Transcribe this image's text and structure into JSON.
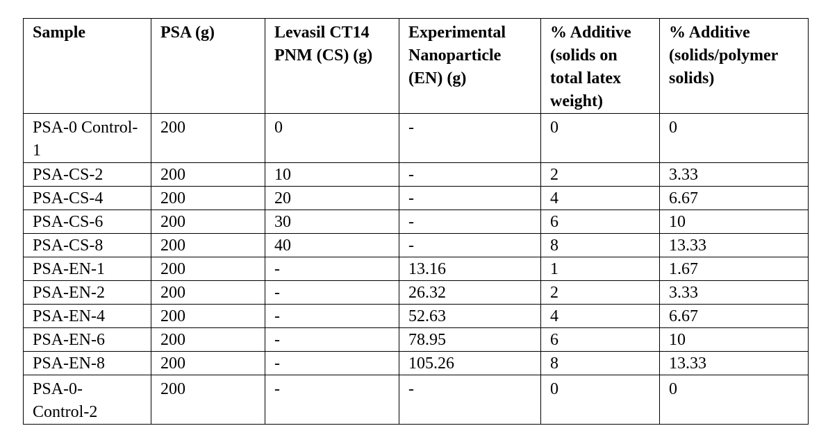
{
  "table": {
    "headers": [
      "Sample",
      "PSA (g)",
      "Levasil CT14 PNM (CS) (g)",
      "Experimental Nanoparticle (EN) (g)",
      "% Additive (solids on total latex weight)",
      "% Additive (solids/polymer solids)"
    ],
    "rows": [
      [
        "PSA-0 Control-1",
        "200",
        "0",
        "-",
        "0",
        "0"
      ],
      [
        "PSA-CS-2",
        "200",
        "10",
        "-",
        "2",
        "3.33"
      ],
      [
        "PSA-CS-4",
        "200",
        "20",
        "-",
        "4",
        "6.67"
      ],
      [
        "PSA-CS-6",
        "200",
        "30",
        "-",
        "6",
        "10"
      ],
      [
        "PSA-CS-8",
        "200",
        "40",
        "-",
        "8",
        "13.33"
      ],
      [
        "PSA-EN-1",
        "200",
        "-",
        "13.16",
        "1",
        "1.67"
      ],
      [
        "PSA-EN-2",
        "200",
        "-",
        "26.32",
        "2",
        "3.33"
      ],
      [
        "PSA-EN-4",
        "200",
        "-",
        "52.63",
        "4",
        "6.67"
      ],
      [
        "PSA-EN-6",
        "200",
        "-",
        "78.95",
        "6",
        "10"
      ],
      [
        "PSA-EN-8",
        "200",
        "-",
        "105.26",
        "8",
        "13.33"
      ],
      [
        "PSA-0- Control-2",
        "200",
        "-",
        "-",
        "0",
        "0"
      ]
    ]
  }
}
